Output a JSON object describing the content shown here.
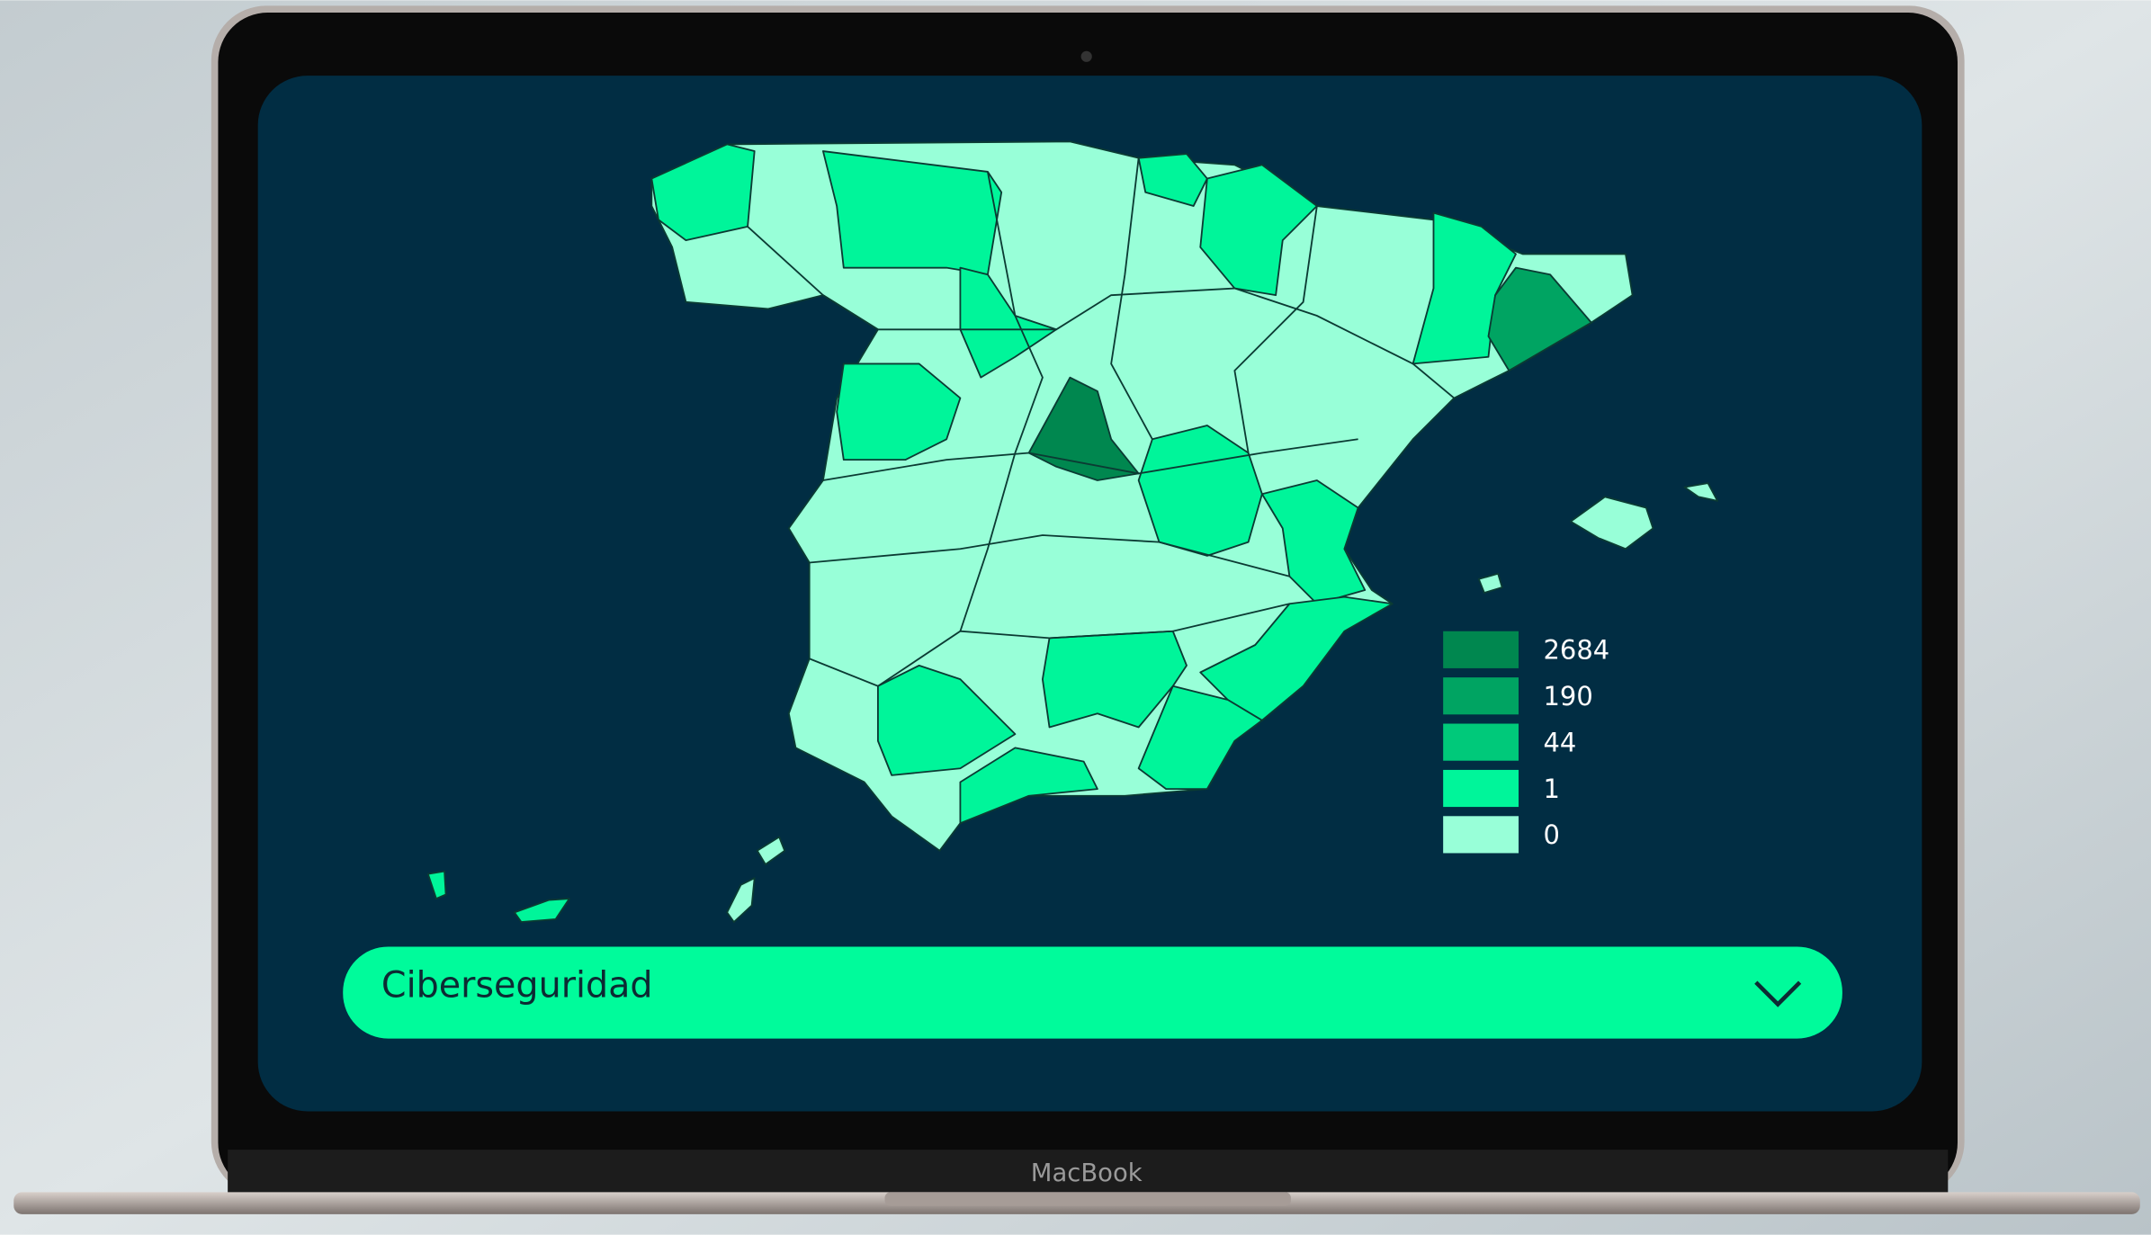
{
  "device_label": "MacBook",
  "map_legend": {
    "items": [
      {
        "value": 2684,
        "color": "#00874f"
      },
      {
        "value": 190,
        "color": "#00a462"
      },
      {
        "value": 44,
        "color": "#00c97a"
      },
      {
        "value": 1,
        "color": "#00f59a"
      },
      {
        "value": 0,
        "color": "#98ffd8"
      }
    ]
  },
  "dropdown": {
    "selected": "Ciberseguridad"
  }
}
